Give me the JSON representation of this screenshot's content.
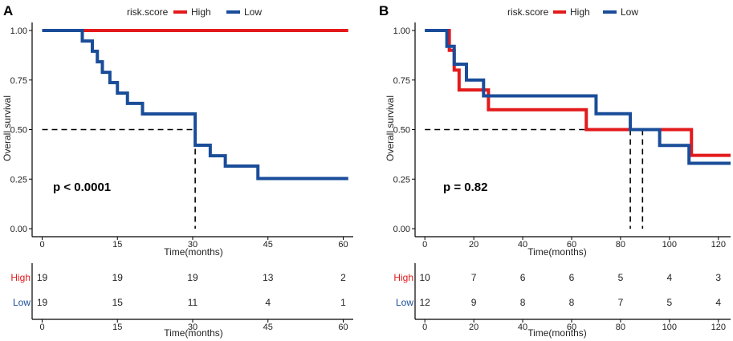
{
  "chart_data": [
    {
      "type": "line",
      "subtype": "kaplan-meier",
      "panel_label": "A",
      "legend": {
        "title": "risk.score",
        "entries": [
          "High",
          "Low"
        ],
        "placement": "top"
      },
      "ylabel": "Overall survival",
      "xlabel": "Time(months)",
      "xlim": [
        -2,
        62
      ],
      "ylim": [
        0,
        1
      ],
      "xticks": [
        0,
        15,
        30,
        45,
        60
      ],
      "xtick_labels": [
        "0",
        "15",
        "30",
        "45",
        "60"
      ],
      "yticks": [
        0,
        0.25,
        0.5,
        0.75,
        1
      ],
      "ytick_labels": [
        "0.00",
        "0.25",
        "0.50",
        "0.75",
        "1.00"
      ],
      "pvalue": "p < 0.0001",
      "median_lines": [
        {
          "x": 30.5,
          "y": 0.5
        }
      ],
      "series": [
        {
          "name": "High",
          "color": "#e31a1c",
          "x": [
            0,
            61
          ],
          "y": [
            1,
            1
          ]
        },
        {
          "name": "Low",
          "color": "#1a4d99",
          "x": [
            0,
            8,
            10,
            11,
            12,
            13.5,
            15,
            17,
            17.5,
            20,
            30.5,
            33.5,
            36.5,
            43,
            61
          ],
          "y": [
            1,
            0.947,
            0.895,
            0.842,
            0.789,
            0.737,
            0.684,
            0.632,
            0.632,
            0.579,
            0.421,
            0.368,
            0.316,
            0.253,
            0.253
          ]
        }
      ],
      "risk_table": {
        "xlabel": "Time(months)",
        "times": [
          0,
          15,
          30,
          45,
          60
        ],
        "rows": [
          {
            "label": "High",
            "color": "#e31a1c",
            "values": [
              "19",
              "19",
              "19",
              "13",
              "2"
            ]
          },
          {
            "label": "Low",
            "color": "#1a4d99",
            "values": [
              "19",
              "15",
              "11",
              "4",
              "1"
            ]
          }
        ]
      }
    },
    {
      "type": "line",
      "subtype": "kaplan-meier",
      "panel_label": "B",
      "legend": {
        "title": "risk.score",
        "entries": [
          "High",
          "Low"
        ],
        "placement": "top"
      },
      "ylabel": "Overall survival",
      "xlabel": "Time(months)",
      "xlim": [
        -4,
        125
      ],
      "ylim": [
        0,
        1
      ],
      "xticks": [
        0,
        20,
        40,
        60,
        80,
        100,
        120
      ],
      "xtick_labels": [
        "0",
        "20",
        "40",
        "60",
        "80",
        "100",
        "120"
      ],
      "yticks": [
        0,
        0.25,
        0.5,
        0.75,
        1
      ],
      "ytick_labels": [
        "0.00",
        "0.25",
        "0.50",
        "0.75",
        "1.00"
      ],
      "pvalue": "p = 0.82",
      "median_lines": [
        {
          "x": 84,
          "y": 0.5
        },
        {
          "x": 89,
          "y": 0.5
        }
      ],
      "series": [
        {
          "name": "High",
          "color": "#e31a1c",
          "x": [
            0,
            5,
            10,
            12,
            14,
            20,
            22,
            26,
            66,
            101,
            109,
            125
          ],
          "y": [
            1,
            1,
            0.9,
            0.8,
            0.7,
            0.7,
            0.7,
            0.6,
            0.5,
            0.5,
            0.37,
            0.37
          ]
        },
        {
          "name": "Low",
          "color": "#1a4d99",
          "x": [
            0,
            6,
            9,
            12,
            15,
            17,
            22,
            24,
            70,
            84,
            96,
            108,
            125
          ],
          "y": [
            1,
            1,
            0.92,
            0.83,
            0.83,
            0.75,
            0.75,
            0.67,
            0.58,
            0.5,
            0.42,
            0.33,
            0.33
          ]
        }
      ],
      "risk_table": {
        "xlabel": "Time(months)",
        "times": [
          0,
          20,
          40,
          60,
          80,
          100,
          120
        ],
        "rows": [
          {
            "label": "High",
            "color": "#e31a1c",
            "values": [
              "10",
              "7",
              "6",
              "6",
              "5",
              "4",
              "3"
            ]
          },
          {
            "label": "Low",
            "color": "#1a4d99",
            "values": [
              "12",
              "9",
              "8",
              "8",
              "7",
              "5",
              "4"
            ]
          }
        ]
      }
    }
  ]
}
